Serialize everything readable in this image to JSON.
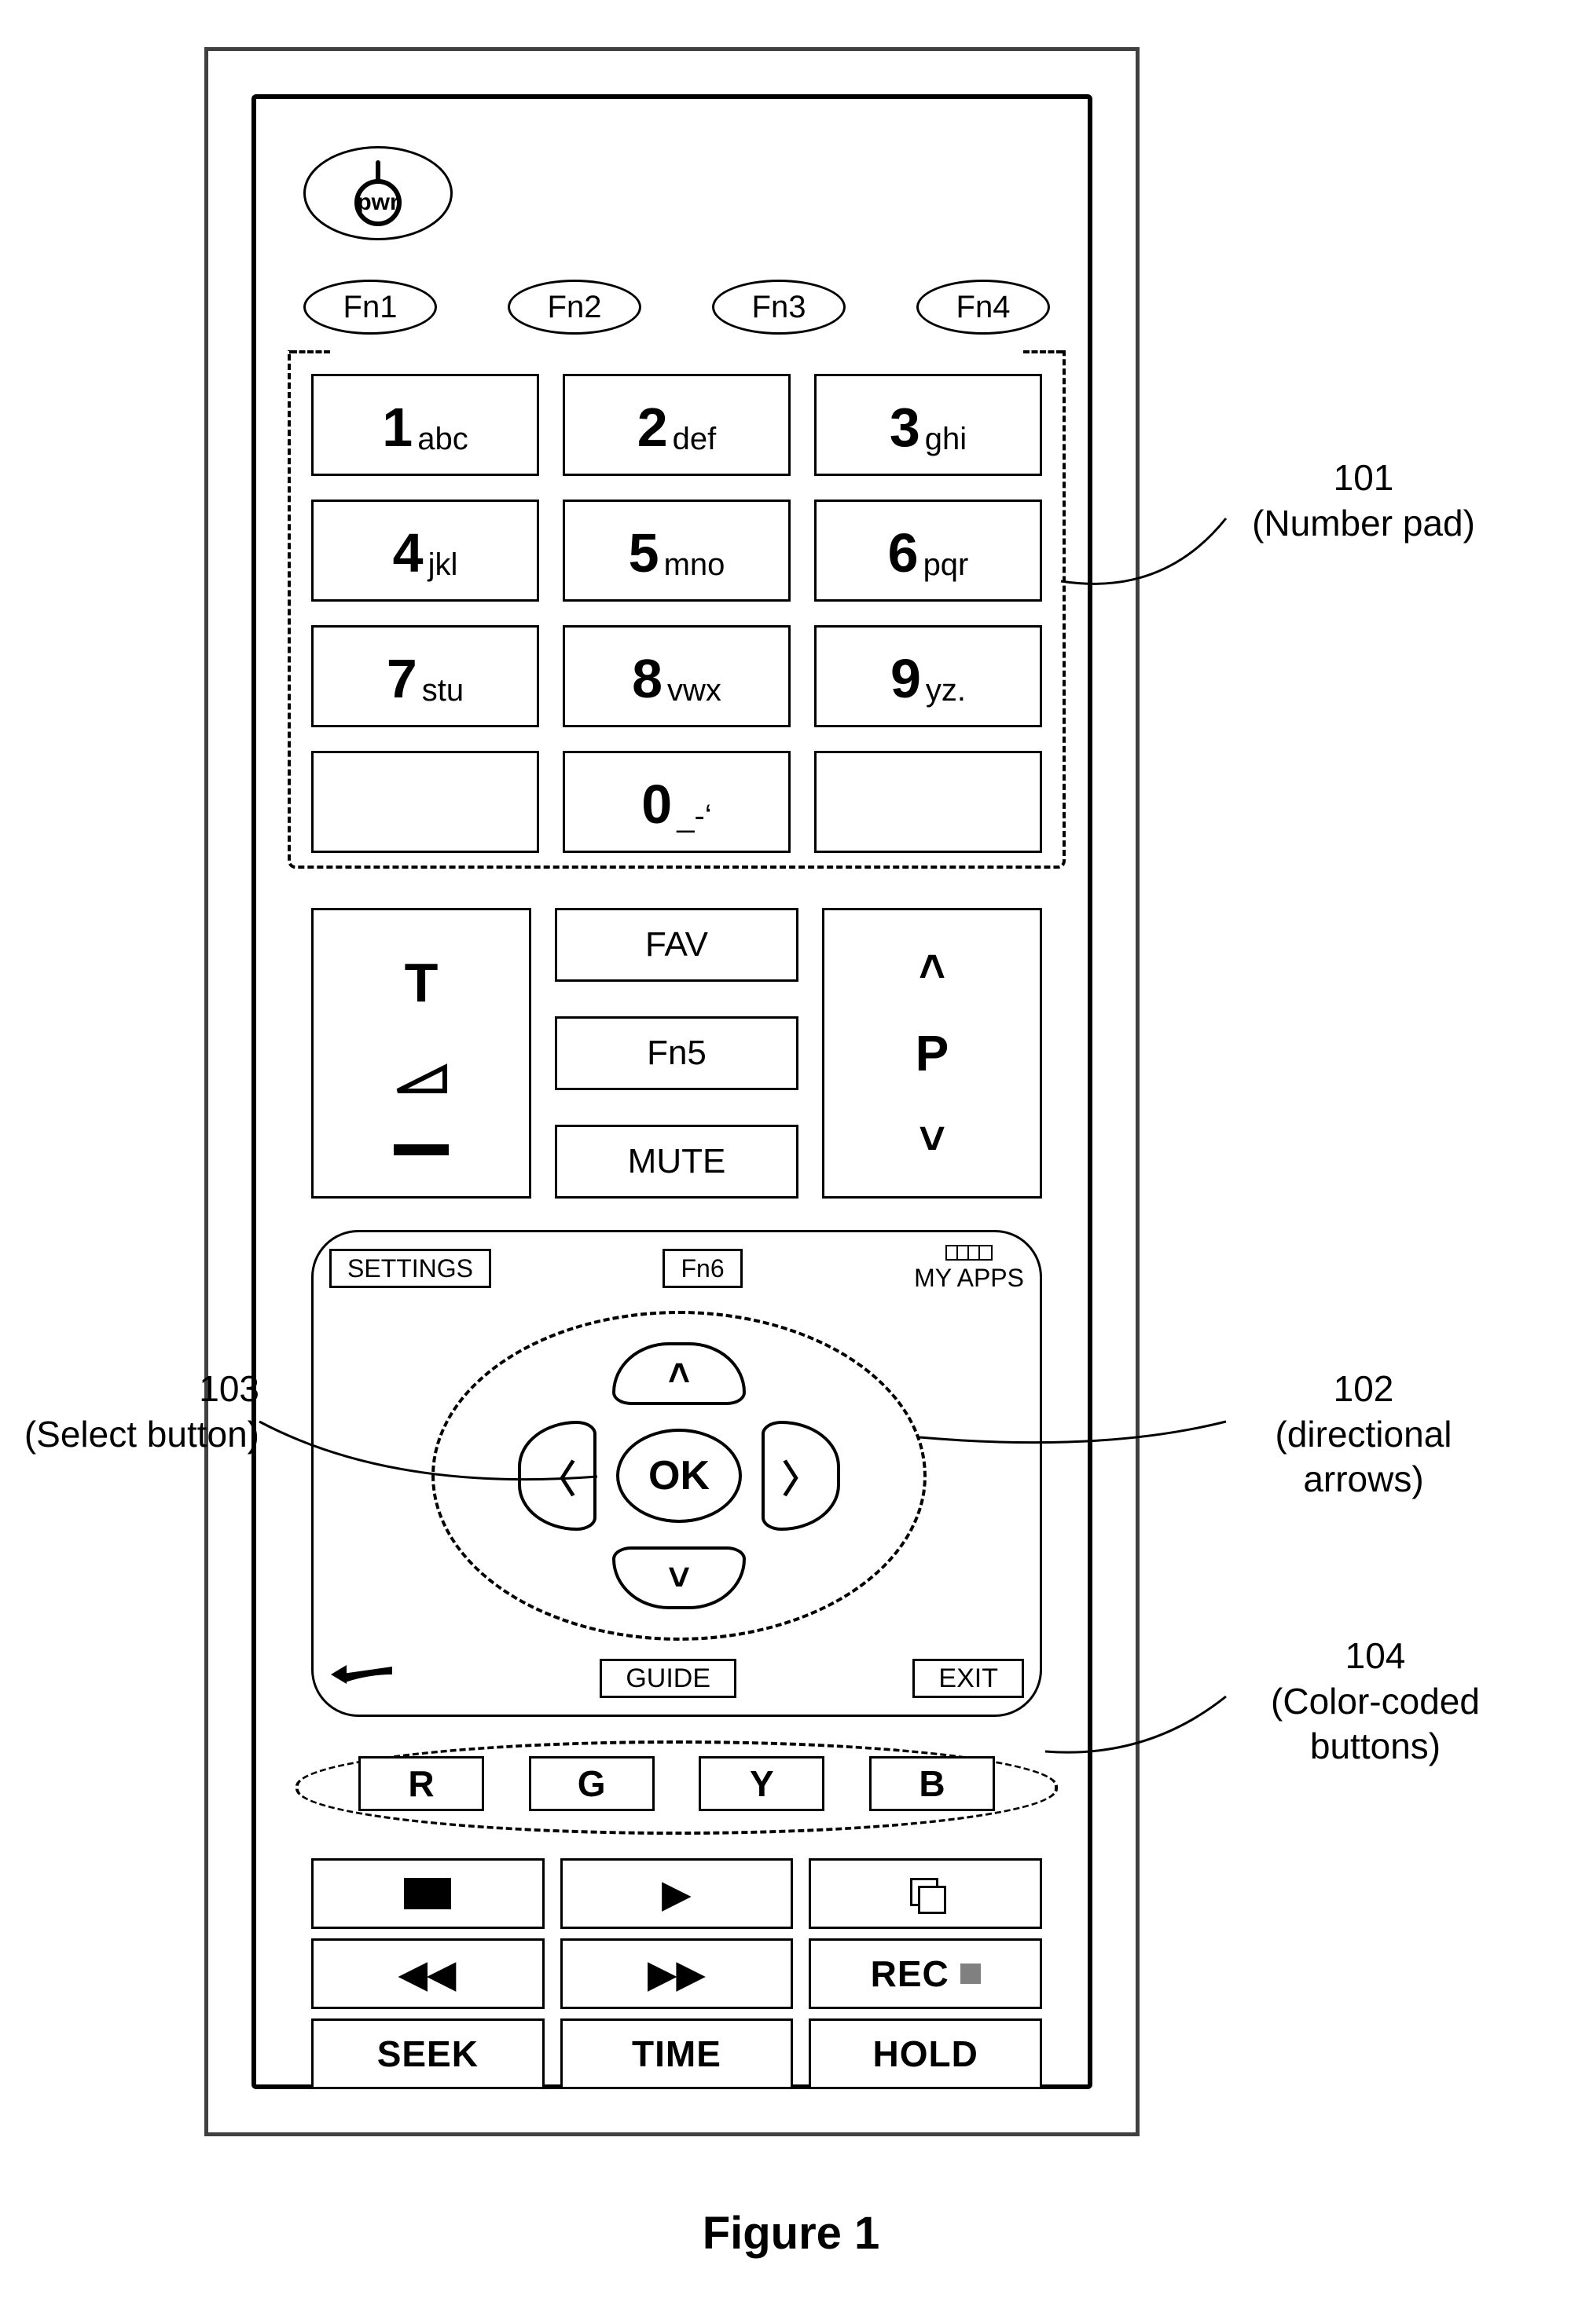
{
  "figure_label": "Figure 1",
  "annotations": {
    "numpad": {
      "num": "101",
      "text": "(Number pad)"
    },
    "dpad": {
      "num": "102",
      "text": "(directional arrows)"
    },
    "select": {
      "num": "103",
      "text": "(Select button)"
    },
    "colors": {
      "num": "104",
      "text": "(Color-coded buttons)"
    }
  },
  "power_label": "pwr",
  "fn_row": [
    "Fn1",
    "Fn2",
    "Fn3",
    "Fn4"
  ],
  "numpad": [
    {
      "n": "1",
      "l": "abc"
    },
    {
      "n": "2",
      "l": "def"
    },
    {
      "n": "3",
      "l": "ghi"
    },
    {
      "n": "4",
      "l": "jkl"
    },
    {
      "n": "5",
      "l": "mno"
    },
    {
      "n": "6",
      "l": "pqr"
    },
    {
      "n": "7",
      "l": "stu"
    },
    {
      "n": "8",
      "l": "vwx"
    },
    {
      "n": "9",
      "l": "yz."
    },
    {
      "n": "",
      "l": ""
    },
    {
      "n": "0",
      "l": "_-‘"
    },
    {
      "n": "",
      "l": ""
    }
  ],
  "mid_center": {
    "fav": "FAV",
    "fn5": "Fn5",
    "mute": "MUTE"
  },
  "prog_label": "P",
  "nav": {
    "settings": "SETTINGS",
    "fn6": "Fn6",
    "myapps": "MY APPS",
    "ok": "OK",
    "guide": "GUIDE",
    "exit": "EXIT"
  },
  "color_buttons": [
    "R",
    "G",
    "Y",
    "B"
  ],
  "playback": {
    "seek": "SEEK",
    "time": "TIME",
    "hold": "HOLD",
    "rec": "REC"
  },
  "glyphs": {
    "chev_up": "˄",
    "chev_down": "˅",
    "chev_left": "〈",
    "chev_right": "〉",
    "play": "▶",
    "rew": "◀◀",
    "ffwd": "▶▶"
  },
  "colors": {
    "line": "#000000",
    "frame": "#404040",
    "bg": "#ffffff",
    "rec_dot": "#808080"
  }
}
